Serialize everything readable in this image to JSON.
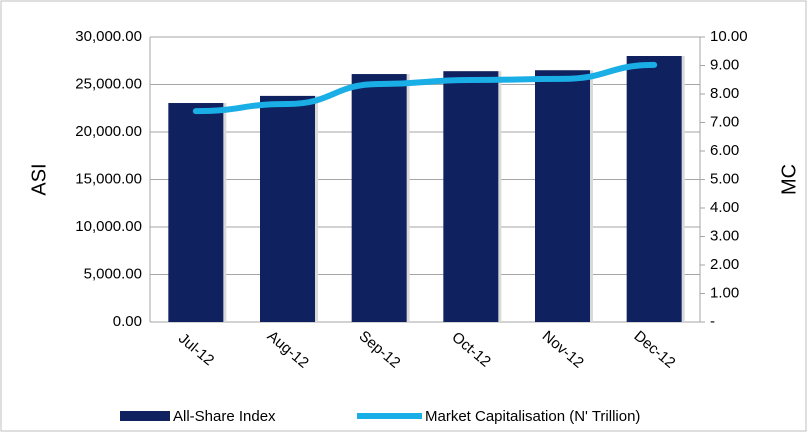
{
  "chart_data": {
    "type": "bar",
    "categories": [
      "Jul-12",
      "Aug-12",
      "Sep-12",
      "Oct-12",
      "Nov-12",
      "Dec-12"
    ],
    "series": [
      {
        "name": "All-Share Index",
        "type": "bar",
        "color": "#0f215e",
        "values": [
          23050,
          23800,
          26100,
          26400,
          26500,
          28000
        ]
      },
      {
        "name": "Market Capitalisation (N' Trillion)",
        "type": "line",
        "axis": "y2",
        "color": "#1aaee6",
        "values": [
          7.4,
          7.65,
          8.35,
          8.49,
          8.53,
          9.02
        ]
      }
    ],
    "ylabel": "ASI",
    "y2label": "MC",
    "ylim": [
      0,
      30000
    ],
    "yticks": [
      {
        "value": 0,
        "label": "0.00"
      },
      {
        "value": 5000,
        "label": "5,000.00"
      },
      {
        "value": 10000,
        "label": "10,000.00"
      },
      {
        "value": 15000,
        "label": "15,000.00"
      },
      {
        "value": 20000,
        "label": "20,000.00"
      },
      {
        "value": 25000,
        "label": "25,000.00"
      },
      {
        "value": 30000,
        "label": "30,000.00"
      }
    ],
    "y2lim": [
      0,
      10
    ],
    "y2ticks": [
      {
        "value": 0,
        "label": "-"
      },
      {
        "value": 1,
        "label": "1.00"
      },
      {
        "value": 2,
        "label": "2.00"
      },
      {
        "value": 3,
        "label": "3.00"
      },
      {
        "value": 4,
        "label": "4.00"
      },
      {
        "value": 5,
        "label": "5.00"
      },
      {
        "value": 6,
        "label": "6.00"
      },
      {
        "value": 7,
        "label": "7.00"
      },
      {
        "value": 8,
        "label": "8.00"
      },
      {
        "value": 9,
        "label": "9.00"
      },
      {
        "value": 10,
        "label": "10.00"
      }
    ],
    "grid": true
  }
}
